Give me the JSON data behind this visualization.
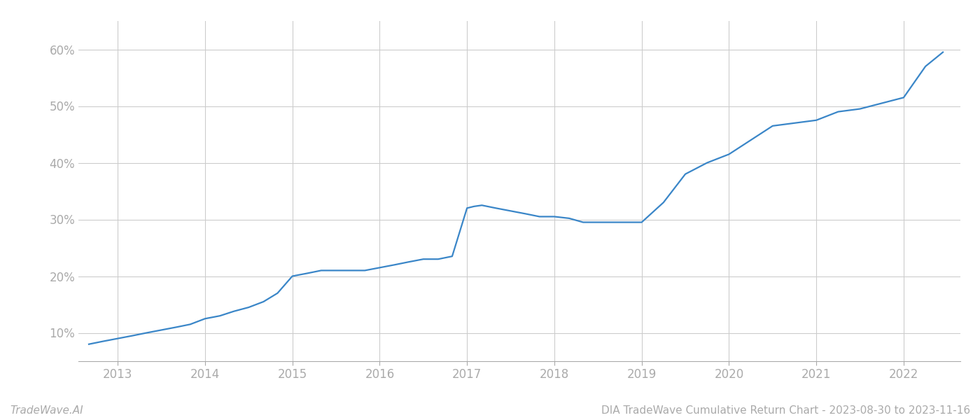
{
  "title": "DIA TradeWave Cumulative Return Chart - 2023-08-30 to 2023-11-16",
  "watermark": "TradeWave.AI",
  "line_color": "#3a86c8",
  "background_color": "#ffffff",
  "grid_color": "#cccccc",
  "x_years": [
    2013,
    2014,
    2015,
    2016,
    2017,
    2018,
    2019,
    2020,
    2021,
    2022
  ],
  "x_values": [
    2012.67,
    2012.83,
    2013.0,
    2013.17,
    2013.33,
    2013.5,
    2013.67,
    2013.83,
    2014.0,
    2014.17,
    2014.33,
    2014.5,
    2014.67,
    2014.83,
    2015.0,
    2015.17,
    2015.33,
    2015.5,
    2015.67,
    2015.83,
    2016.0,
    2016.17,
    2016.33,
    2016.5,
    2016.67,
    2016.83,
    2017.0,
    2017.08,
    2017.17,
    2017.33,
    2017.5,
    2017.67,
    2017.83,
    2018.0,
    2018.17,
    2018.33,
    2018.5,
    2018.67,
    2019.0,
    2019.25,
    2019.5,
    2019.75,
    2020.0,
    2020.25,
    2020.5,
    2020.75,
    2021.0,
    2021.25,
    2021.5,
    2021.75,
    2022.0,
    2022.25,
    2022.45
  ],
  "y_values": [
    8.0,
    8.5,
    9.0,
    9.5,
    10.0,
    10.5,
    11.0,
    11.5,
    12.5,
    13.0,
    13.8,
    14.5,
    15.5,
    17.0,
    20.0,
    20.5,
    21.0,
    21.0,
    21.0,
    21.0,
    21.5,
    22.0,
    22.5,
    23.0,
    23.0,
    23.5,
    32.0,
    32.3,
    32.5,
    32.0,
    31.5,
    31.0,
    30.5,
    30.5,
    30.2,
    29.5,
    29.5,
    29.5,
    29.5,
    33.0,
    38.0,
    40.0,
    41.5,
    44.0,
    46.5,
    47.0,
    47.5,
    49.0,
    49.5,
    50.5,
    51.5,
    57.0,
    59.5
  ],
  "ylim": [
    5,
    65
  ],
  "yticks": [
    10,
    20,
    30,
    40,
    50,
    60
  ],
  "xlim": [
    2012.55,
    2022.65
  ],
  "tick_label_color": "#aaaaaa",
  "tick_fontsize": 12,
  "footer_fontsize": 11,
  "line_width": 1.6
}
